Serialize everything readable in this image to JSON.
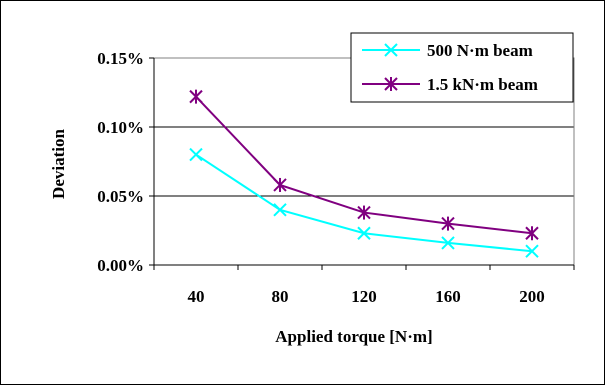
{
  "chart_data": {
    "type": "line",
    "title": "",
    "xlabel": "Applied torque [N·m]",
    "ylabel": "Deviation",
    "categories": [
      "40",
      "80",
      "120",
      "160",
      "200"
    ],
    "ylim": [
      0,
      0.15
    ],
    "yticks": [
      "0.00%",
      "0.05%",
      "0.10%",
      "0.15%"
    ],
    "ytick_values": [
      0,
      0.05,
      0.1,
      0.15
    ],
    "grid": true,
    "legend": "top-right",
    "series": [
      {
        "name": "500 N·m beam",
        "color": "#00ffff",
        "marker": "x-icon",
        "values": [
          0.08,
          0.04,
          0.023,
          0.016,
          0.01
        ]
      },
      {
        "name": "1.5 kN·m beam",
        "color": "#800080",
        "marker": "asterisk-icon",
        "values": [
          0.122,
          0.058,
          0.038,
          0.03,
          0.023
        ]
      }
    ]
  }
}
